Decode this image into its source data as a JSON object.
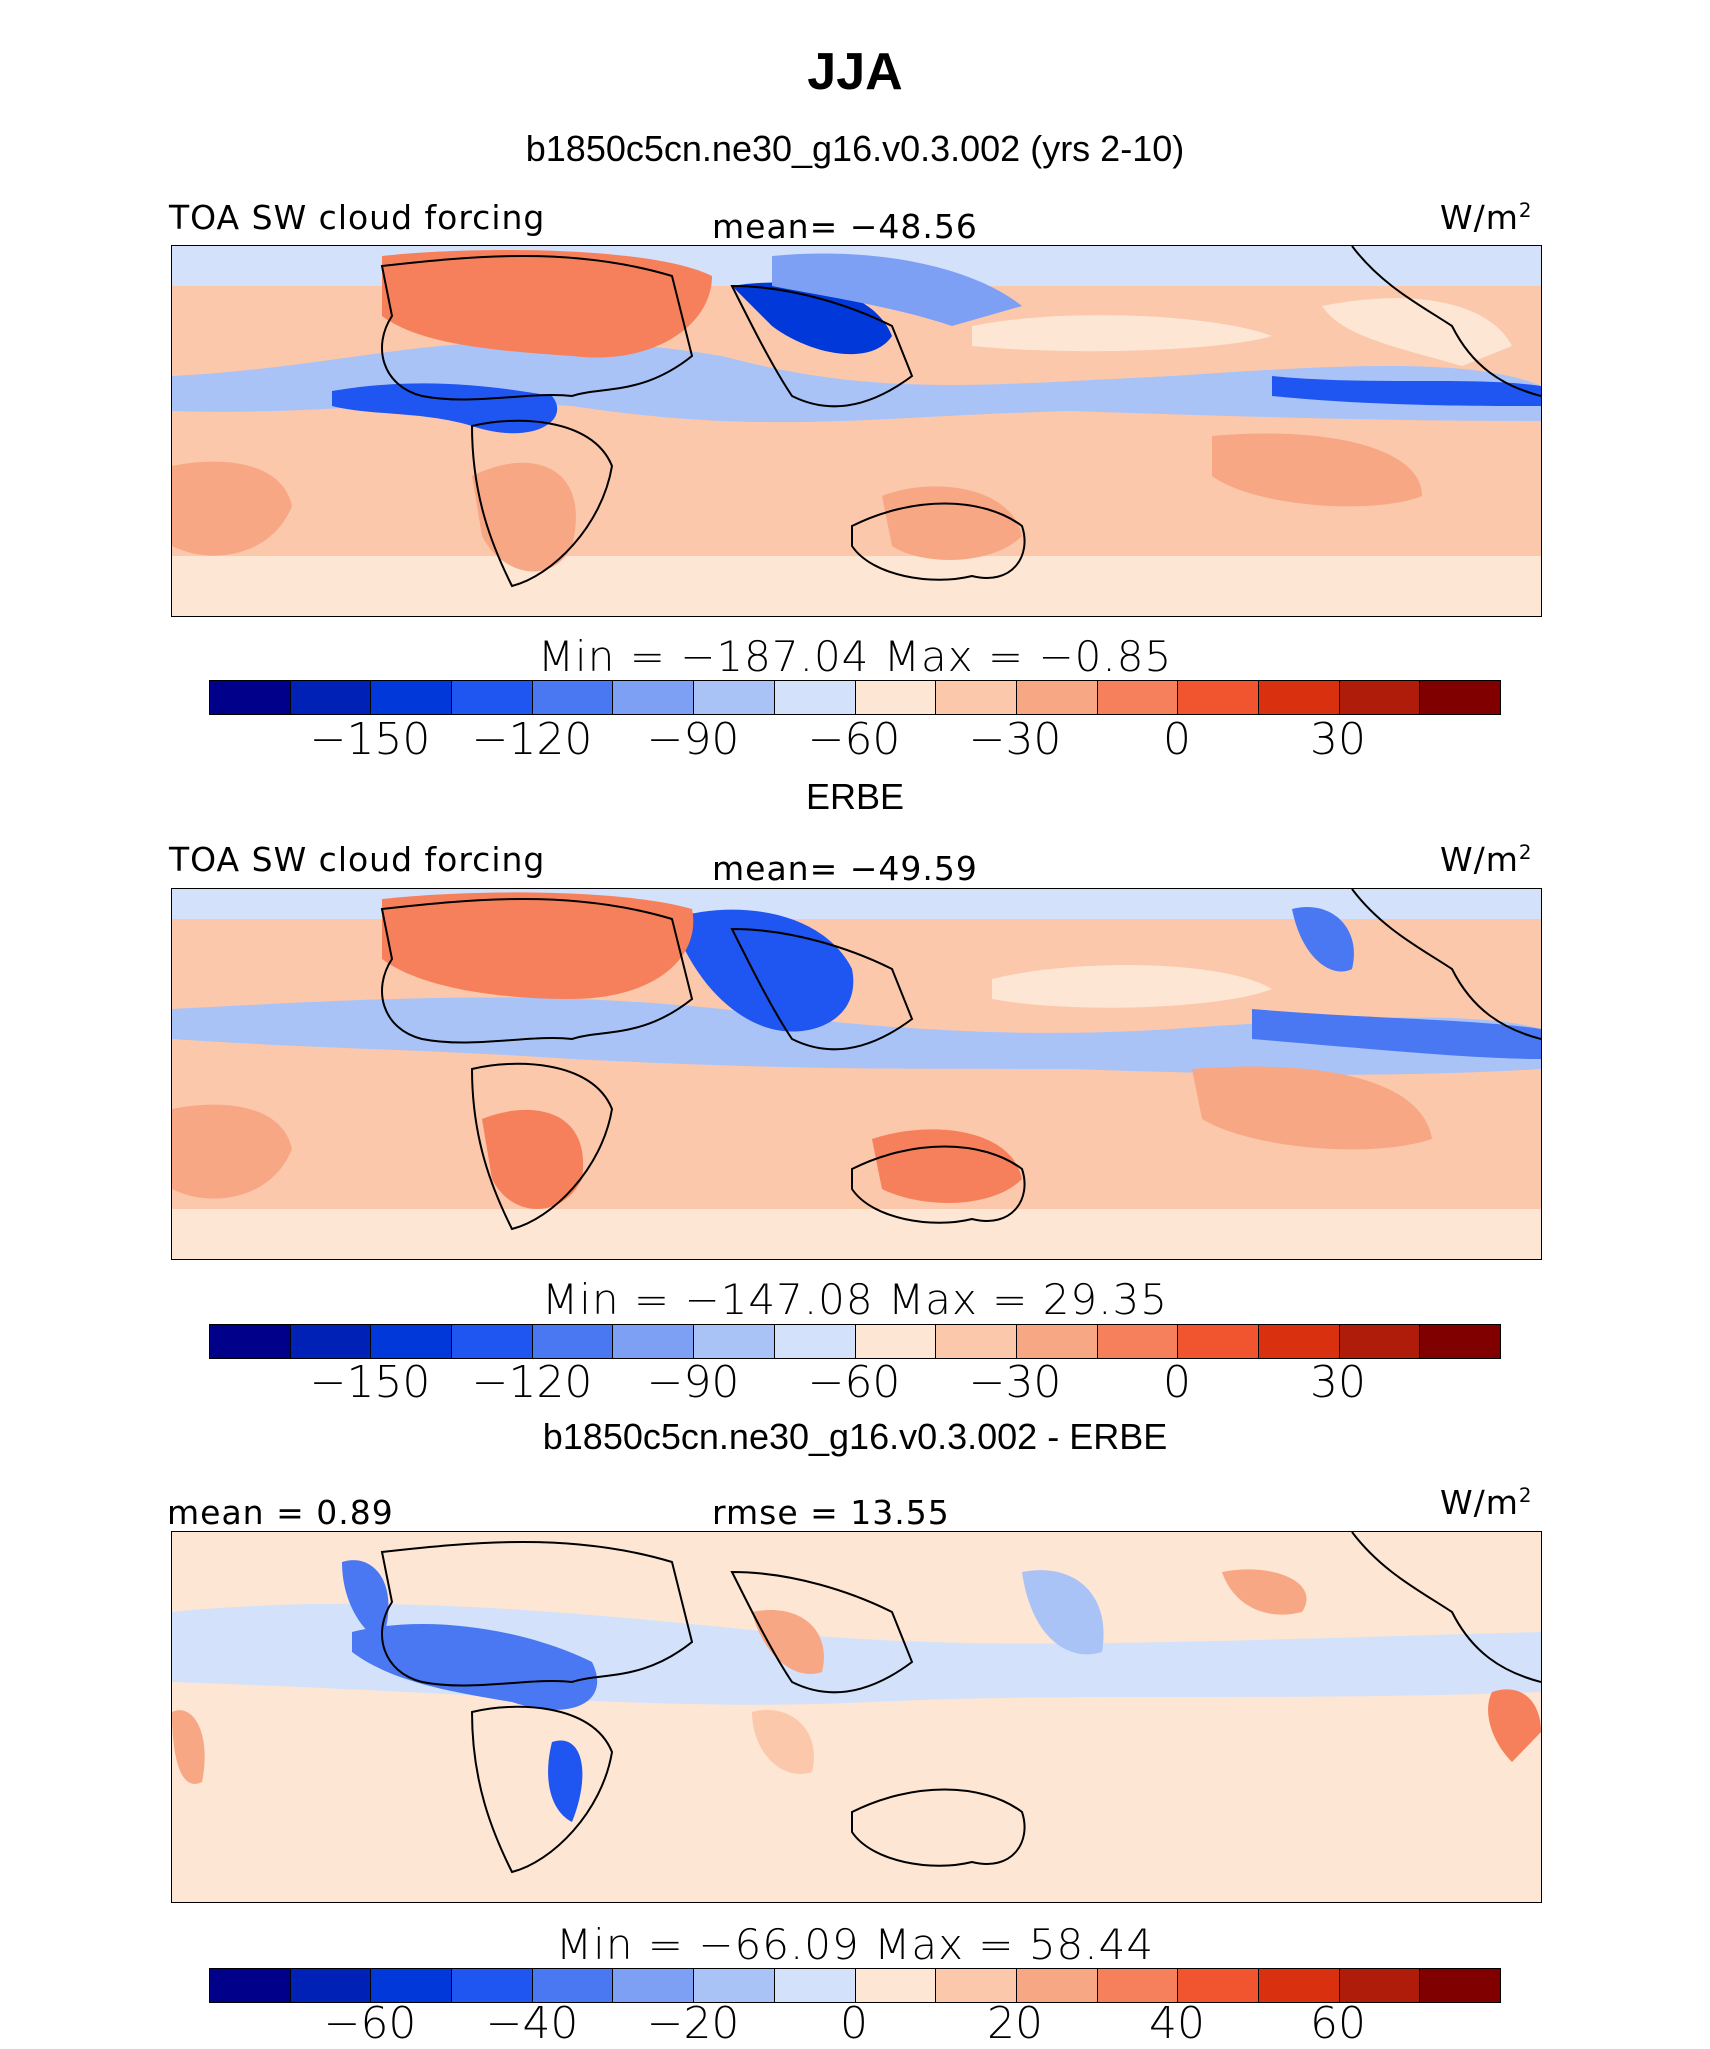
{
  "title": "JJA",
  "panels": [
    {
      "heading": "b1850c5cn.ne30_g16.v0.3.002 (yrs 2-10)",
      "label_left": "TOA SW cloud forcing",
      "label_center": "mean= −48.56",
      "unit": "W/m",
      "unit_exp": "2",
      "stats": "Min = −187.04  Max =  −0.85",
      "colorbar_ticks": [
        "−150",
        "−120",
        "−90",
        "−60",
        "−30",
        "0",
        "30"
      ]
    },
    {
      "heading": "ERBE",
      "label_left": "TOA SW cloud forcing",
      "label_center": "mean= −49.59",
      "unit": "W/m",
      "unit_exp": "2",
      "stats": "Min = −147.08  Max =  29.35",
      "colorbar_ticks": [
        "−150",
        "−120",
        "−90",
        "−60",
        "−30",
        "0",
        "30"
      ]
    },
    {
      "heading": "b1850c5cn.ne30_g16.v0.3.002 - ERBE",
      "label_left": "mean =   0.89",
      "label_center": "rmse =  13.55",
      "unit": "W/m",
      "unit_exp": "2",
      "stats": "Min = −66.09  Max =  58.44",
      "colorbar_ticks": [
        "−60",
        "−40",
        "−20",
        "0",
        "20",
        "40",
        "60"
      ]
    }
  ],
  "colorbar_colors": [
    "#00008b",
    "#0021b5",
    "#0038d9",
    "#1f55f0",
    "#4a78f2",
    "#7ea0f4",
    "#a9c3f7",
    "#d3e2fa",
    "#fde6d4",
    "#fbc8ac",
    "#f8a784",
    "#f6805b",
    "#f05530",
    "#d9300f",
    "#b01c0a",
    "#800000"
  ]
}
